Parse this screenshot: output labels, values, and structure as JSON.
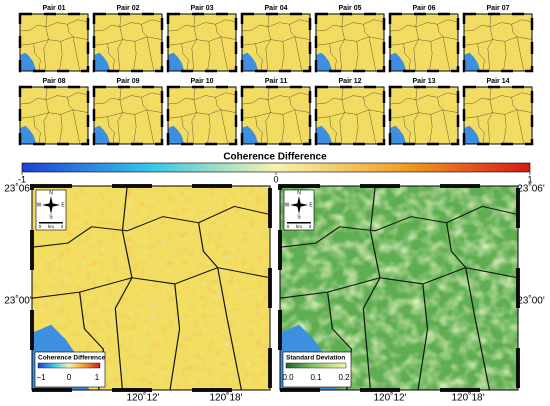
{
  "pairs": [
    "Pair 01",
    "Pair 02",
    "Pair 03",
    "Pair 04",
    "Pair 05",
    "Pair 06",
    "Pair 07",
    "Pair 08",
    "Pair 09",
    "Pair 10",
    "Pair 11",
    "Pair 12",
    "Pair 13",
    "Pair 14"
  ],
  "colorbar": {
    "title": "Coherence Difference",
    "ticks": [
      -1,
      0,
      1
    ]
  },
  "y_labels": [
    "23˚06'",
    "23˚00'"
  ],
  "x_labels": [
    "120˚12'",
    "120˚18'"
  ],
  "panels": [
    {
      "legend_title": "Coherence Difference",
      "legend_ticks": [
        "−1",
        "0",
        "1"
      ]
    },
    {
      "legend_title": "Standard Deviation",
      "legend_ticks": [
        "0.0",
        "0.1",
        "0.2"
      ]
    }
  ],
  "compass": {
    "north": "N",
    "south": "S",
    "east": "E",
    "west": "W",
    "scale": [
      "0",
      "km",
      "3"
    ]
  }
}
